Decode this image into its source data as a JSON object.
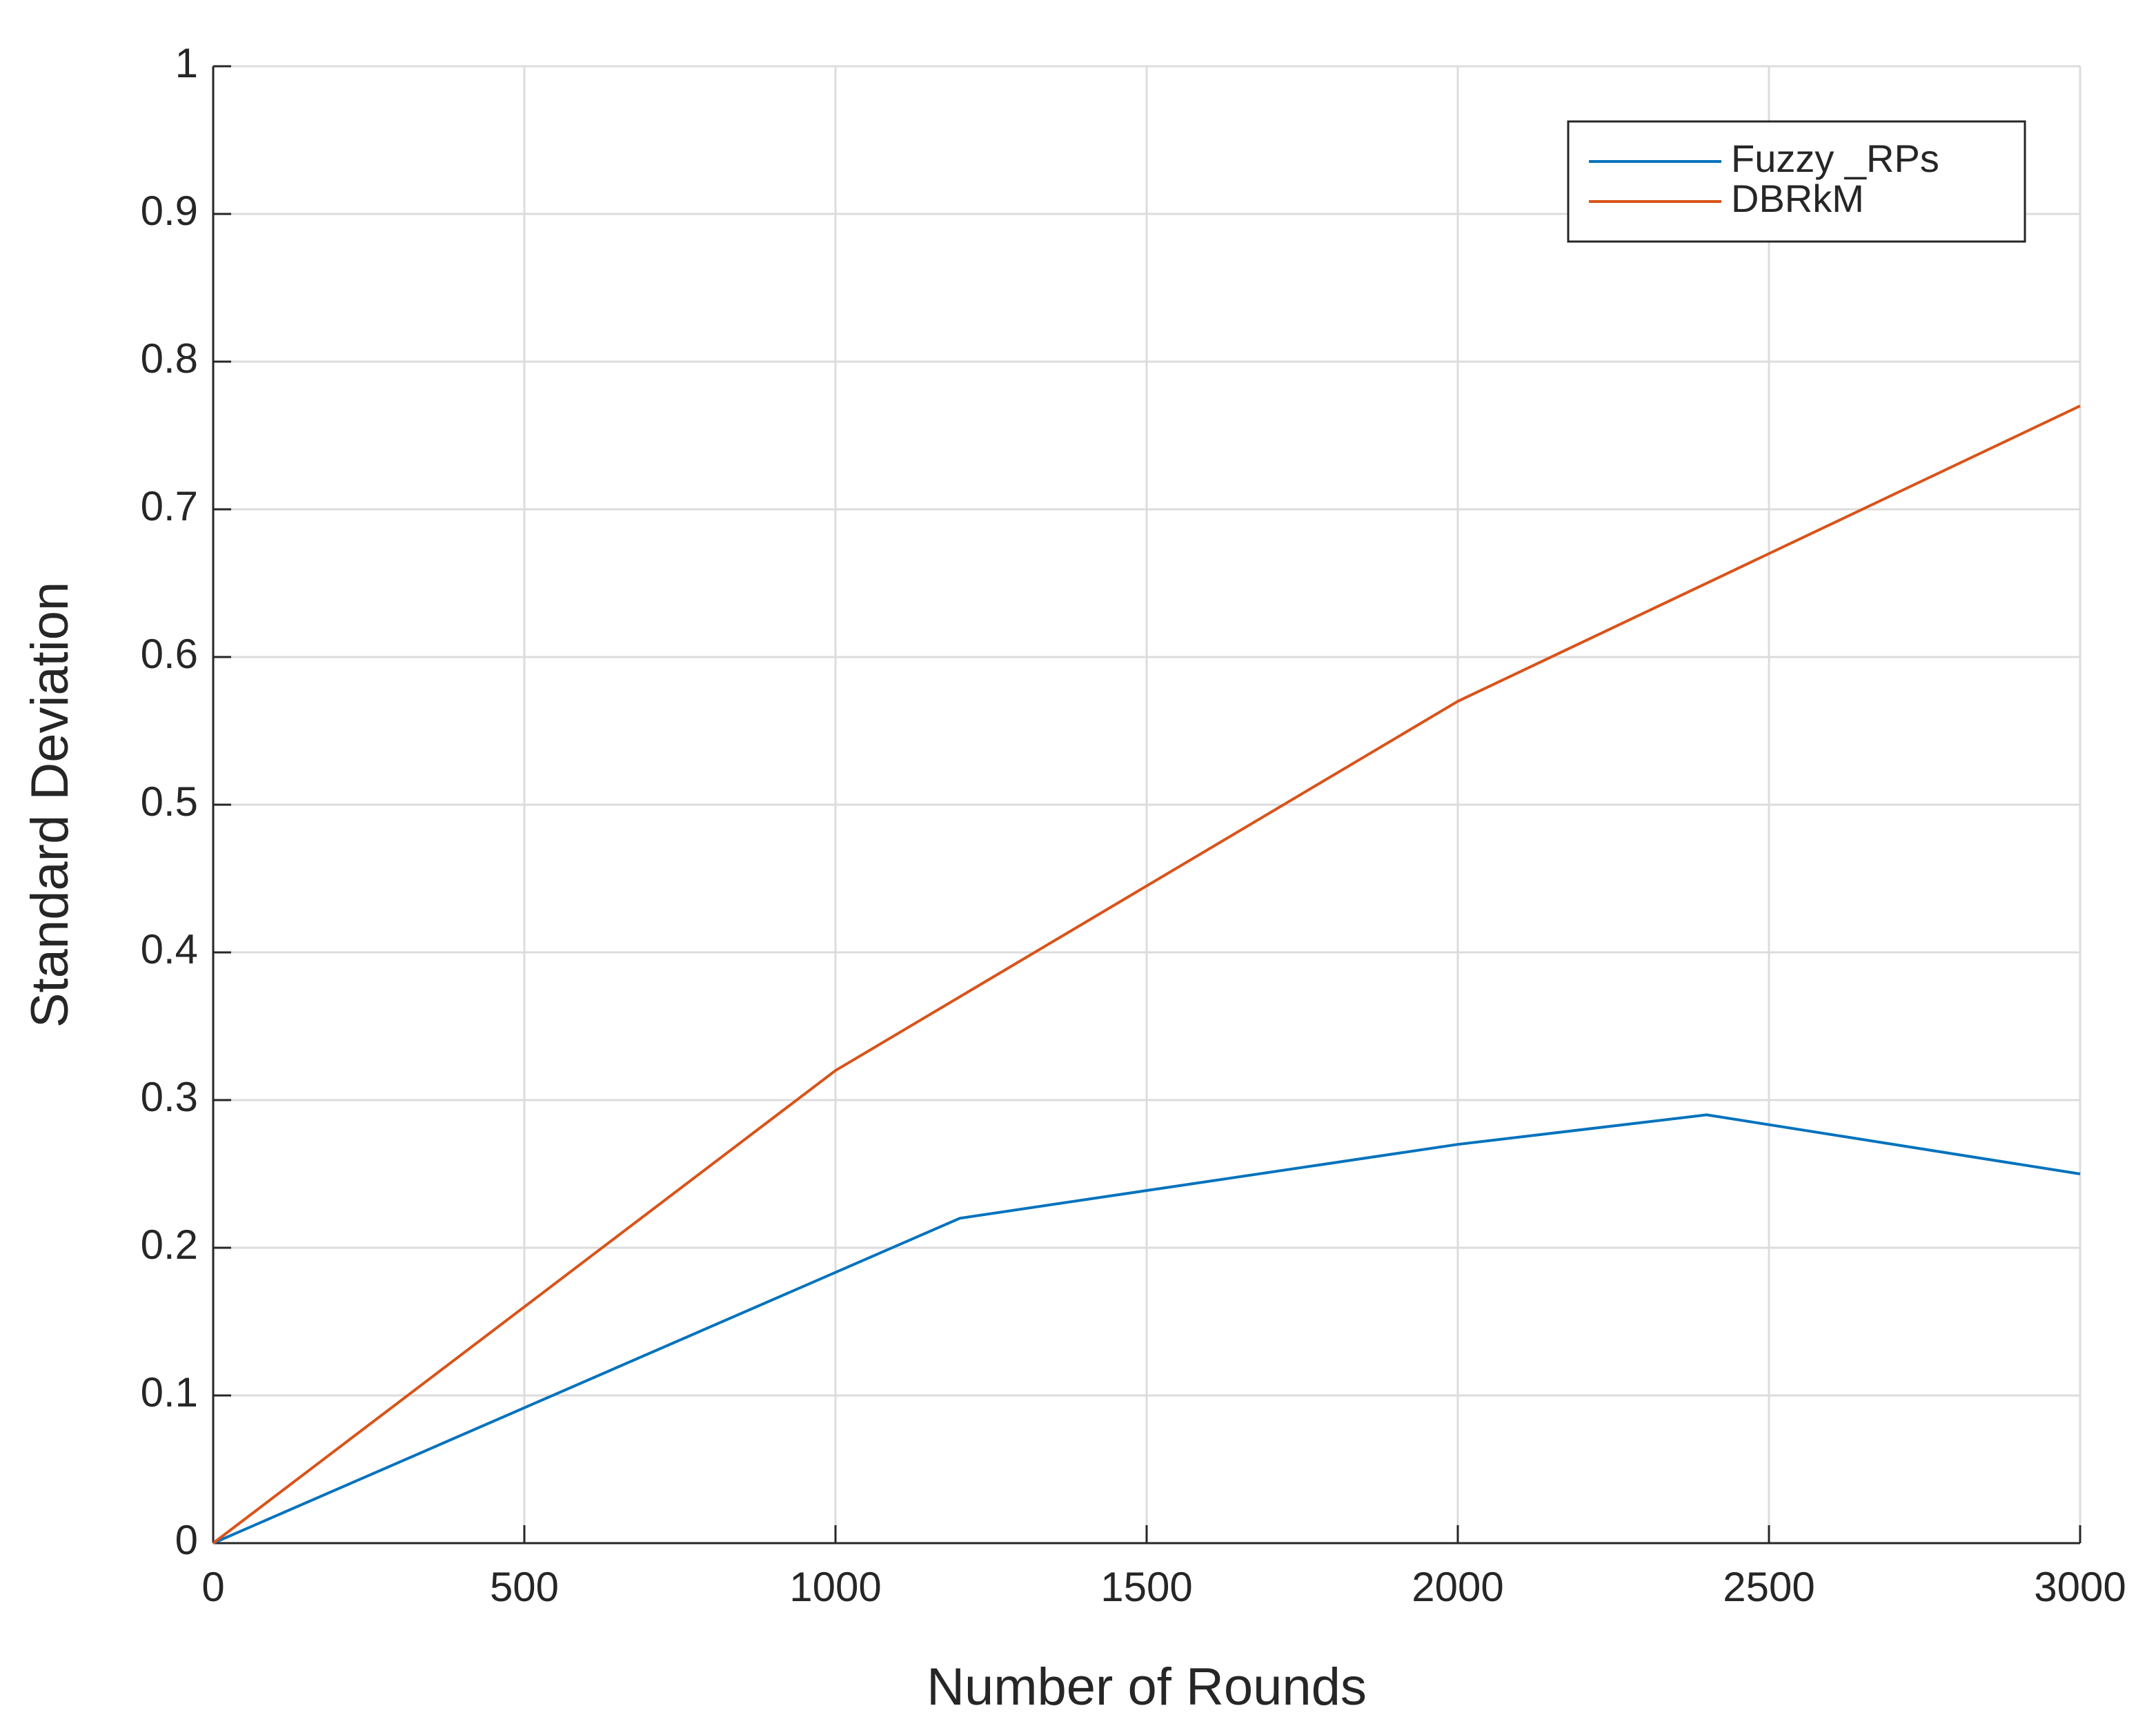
{
  "chart_data": {
    "type": "line",
    "xlabel": "Number of Rounds",
    "ylabel": "Standard Deviation",
    "xlim": [
      0,
      3000
    ],
    "xticks": [
      0,
      500,
      1000,
      1500,
      2000,
      2500,
      3000
    ],
    "ylim": [
      0,
      1
    ],
    "yticks": [
      0,
      0.1,
      0.2,
      0.3,
      0.4,
      0.5,
      0.6,
      0.7,
      0.8,
      0.9,
      1
    ],
    "grid": true,
    "legend": "top-right",
    "series": [
      {
        "name": "Fuzzy _RPs",
        "color": "#0072bd",
        "x": [
          0,
          1200,
          2000,
          2400,
          3000
        ],
        "values": [
          0,
          0.22,
          0.27,
          0.29,
          0.25
        ]
      },
      {
        "name": "DBRkM",
        "color": "#d95319",
        "x": [
          0,
          1000,
          2000,
          3000
        ],
        "values": [
          0,
          0.32,
          0.57,
          0.77
        ]
      }
    ]
  }
}
